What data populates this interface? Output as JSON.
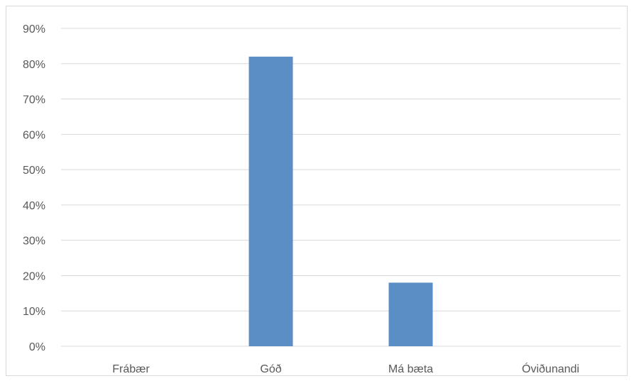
{
  "chart_data": {
    "type": "bar",
    "categories": [
      "Frábær",
      "Góð",
      "Má bæta",
      "Óviðunandi"
    ],
    "values": [
      0,
      82,
      18,
      0
    ],
    "value_unit": "%",
    "ylim": [
      0,
      90
    ],
    "y_ticks": [
      0,
      10,
      20,
      30,
      40,
      50,
      60,
      70,
      80,
      90
    ],
    "y_tick_labels": [
      "0%",
      "10%",
      "20%",
      "30%",
      "40%",
      "50%",
      "60%",
      "70%",
      "80%",
      "90%"
    ],
    "grid": true,
    "legend": "none",
    "colors": {
      "bar": "#5b8ec5",
      "grid": "#d9d9d9",
      "axis": "#d9d9d9",
      "text": "#595959"
    }
  }
}
